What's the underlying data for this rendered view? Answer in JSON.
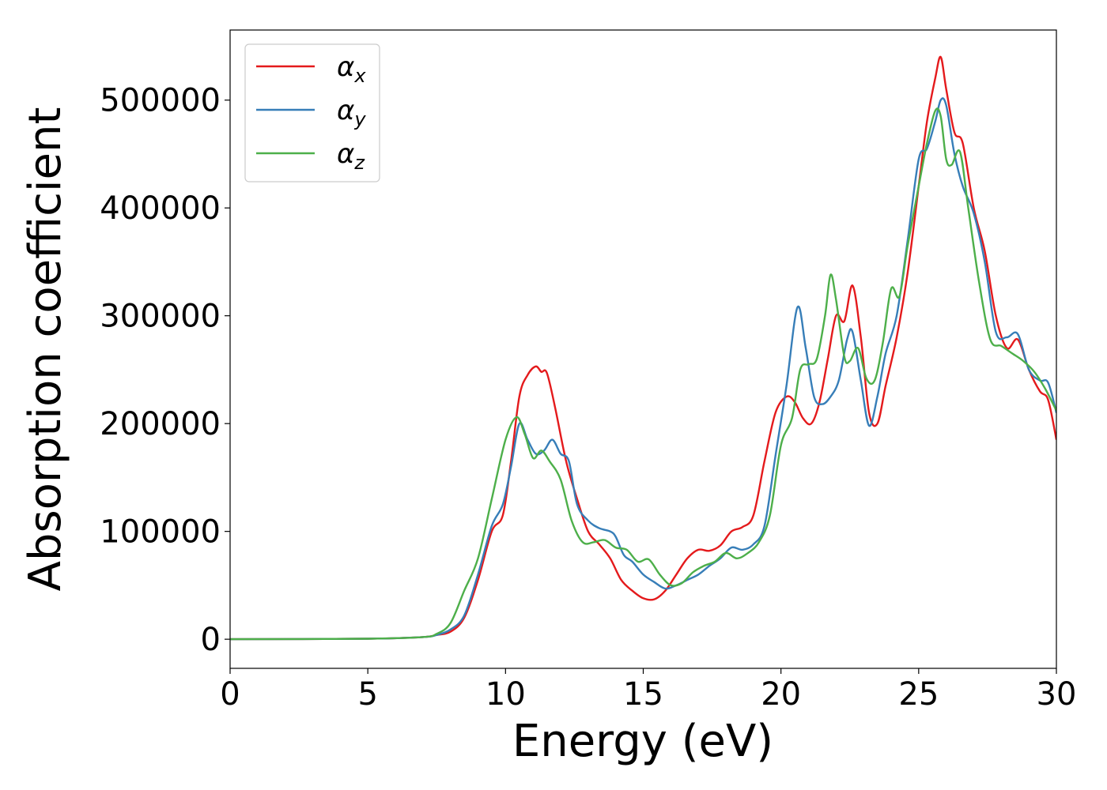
{
  "chart_data": {
    "type": "line",
    "title": "",
    "xlabel": "Energy (eV)",
    "ylabel": "Absorption coefficient",
    "xlim": [
      0,
      30
    ],
    "ylim": [
      -27000,
      565000
    ],
    "xticks": [
      0,
      5,
      10,
      15,
      20,
      25,
      30
    ],
    "yticks": [
      0,
      100000,
      200000,
      300000,
      400000,
      500000
    ],
    "grid": false,
    "legend_position": "upper left",
    "series": [
      {
        "name": "α_x",
        "legend_base": "α",
        "legend_sub": "x",
        "color": "#e41a1c",
        "x": [
          0,
          5,
          7,
          7.5,
          8.0,
          8.5,
          9.0,
          9.5,
          9.9,
          10.2,
          10.5,
          10.8,
          11.1,
          11.3,
          11.5,
          11.8,
          12.2,
          12.6,
          13.0,
          13.4,
          13.8,
          14.2,
          14.6,
          15.0,
          15.4,
          15.8,
          16.2,
          16.6,
          17.0,
          17.4,
          17.8,
          18.2,
          18.6,
          19.0,
          19.4,
          19.8,
          20.2,
          20.5,
          20.8,
          21.1,
          21.4,
          21.7,
          22.0,
          22.3,
          22.6,
          22.9,
          23.2,
          23.5,
          23.8,
          24.2,
          24.6,
          25.0,
          25.3,
          25.6,
          25.8,
          26.0,
          26.3,
          26.6,
          27.0,
          27.4,
          27.8,
          28.2,
          28.6,
          29.0,
          29.4,
          29.7,
          30.0
        ],
        "values": [
          0,
          500,
          2000,
          4000,
          7000,
          20000,
          55000,
          100000,
          115000,
          165000,
          225000,
          245000,
          253000,
          248000,
          247000,
          215000,
          165000,
          130000,
          100000,
          88000,
          75000,
          55000,
          45000,
          38000,
          37000,
          45000,
          60000,
          75000,
          83000,
          82000,
          87000,
          100000,
          104000,
          115000,
          165000,
          210000,
          225000,
          220000,
          205000,
          200000,
          220000,
          260000,
          300000,
          295000,
          328000,
          280000,
          210000,
          200000,
          235000,
          280000,
          340000,
          420000,
          480000,
          520000,
          540000,
          510000,
          470000,
          460000,
          400000,
          360000,
          300000,
          270000,
          278000,
          250000,
          230000,
          222000,
          185000
        ]
      },
      {
        "name": "α_y",
        "legend_base": "α",
        "legend_sub": "y",
        "color": "#377eb8",
        "x": [
          0,
          5,
          7,
          7.5,
          8.0,
          8.5,
          9.0,
          9.5,
          9.9,
          10.2,
          10.5,
          10.8,
          11.1,
          11.4,
          11.7,
          12.0,
          12.3,
          12.6,
          13.0,
          13.4,
          13.8,
          14.0,
          14.3,
          14.6,
          15.0,
          15.4,
          15.8,
          16.2,
          16.6,
          17.0,
          17.4,
          17.8,
          18.2,
          18.6,
          19.0,
          19.4,
          19.8,
          20.2,
          20.6,
          20.9,
          21.2,
          21.5,
          21.8,
          22.1,
          22.4,
          22.6,
          22.9,
          23.2,
          23.5,
          23.8,
          24.2,
          24.6,
          25.0,
          25.3,
          25.6,
          25.8,
          26.0,
          26.3,
          26.6,
          27.0,
          27.4,
          27.8,
          28.2,
          28.6,
          29.0,
          29.4,
          29.7,
          30.0
        ],
        "values": [
          0,
          500,
          2000,
          4000,
          9000,
          22000,
          60000,
          105000,
          125000,
          160000,
          200000,
          185000,
          172000,
          175000,
          185000,
          172000,
          165000,
          125000,
          110000,
          103000,
          100000,
          95000,
          78000,
          72000,
          60000,
          53000,
          47000,
          50000,
          55000,
          60000,
          68000,
          75000,
          85000,
          83000,
          88000,
          105000,
          170000,
          235000,
          308000,
          270000,
          225000,
          218000,
          225000,
          240000,
          278000,
          285000,
          240000,
          198000,
          225000,
          265000,
          300000,
          370000,
          445000,
          455000,
          480000,
          500000,
          495000,
          450000,
          420000,
          395000,
          350000,
          285000,
          280000,
          283000,
          250000,
          240000,
          238000,
          210000
        ]
      },
      {
        "name": "α_z",
        "legend_base": "α",
        "legend_sub": "z",
        "color": "#4daf4a",
        "x": [
          0,
          5,
          7,
          7.5,
          8.0,
          8.5,
          9.0,
          9.5,
          10.0,
          10.4,
          10.7,
          11.0,
          11.3,
          11.6,
          12.0,
          12.4,
          12.8,
          13.2,
          13.6,
          14.0,
          14.4,
          14.8,
          15.2,
          15.6,
          16.0,
          16.4,
          16.8,
          17.2,
          17.6,
          18.0,
          18.4,
          18.8,
          19.2,
          19.6,
          20.0,
          20.4,
          20.7,
          21.0,
          21.3,
          21.6,
          21.8,
          22.0,
          22.3,
          22.5,
          22.8,
          23.1,
          23.4,
          23.7,
          24.0,
          24.3,
          24.6,
          25.0,
          25.3,
          25.6,
          25.8,
          26.0,
          26.2,
          26.5,
          26.8,
          27.2,
          27.6,
          28.0,
          28.4,
          28.8,
          29.2,
          29.6,
          30.0
        ],
        "values": [
          0,
          500,
          2000,
          5000,
          15000,
          45000,
          75000,
          130000,
          185000,
          206000,
          190000,
          168000,
          175000,
          165000,
          148000,
          110000,
          90000,
          90000,
          92000,
          85000,
          83000,
          72000,
          74000,
          60000,
          50000,
          52000,
          62000,
          68000,
          72000,
          80000,
          75000,
          80000,
          90000,
          115000,
          180000,
          205000,
          250000,
          255000,
          260000,
          300000,
          338000,
          315000,
          262000,
          258000,
          270000,
          242000,
          240000,
          275000,
          325000,
          318000,
          365000,
          420000,
          460000,
          490000,
          485000,
          445000,
          440000,
          452000,
          400000,
          330000,
          278000,
          272000,
          265000,
          258000,
          248000,
          232000,
          212000
        ]
      }
    ]
  }
}
